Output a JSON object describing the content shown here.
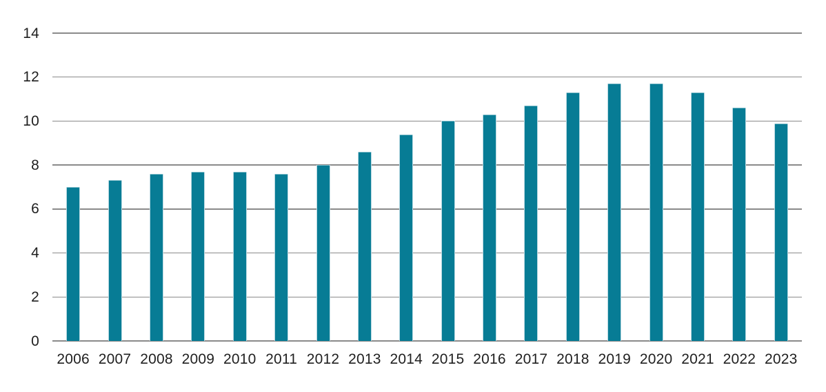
{
  "chart_data": {
    "type": "bar",
    "title": "",
    "xlabel": "",
    "ylabel": "",
    "categories": [
      "2006",
      "2007",
      "2008",
      "2009",
      "2010",
      "2011",
      "2012",
      "2013",
      "2014",
      "2015",
      "2016",
      "2017",
      "2018",
      "2019",
      "2020",
      "2021",
      "2022",
      "2023"
    ],
    "values": [
      7.0,
      7.3,
      7.6,
      7.7,
      7.7,
      7.6,
      8.0,
      8.6,
      9.4,
      10.0,
      10.3,
      10.7,
      11.3,
      11.7,
      11.7,
      11.3,
      10.6,
      9.9
    ],
    "ylim": [
      0,
      14
    ],
    "yticks": [
      0,
      2,
      4,
      6,
      8,
      10,
      12,
      14
    ],
    "grid": "horizontal",
    "legend": "none",
    "colors": {
      "bar": "#077c95",
      "gridline": "#8a8a8a",
      "tick_label": "#1f1f1f",
      "background": "#ffffff"
    }
  }
}
